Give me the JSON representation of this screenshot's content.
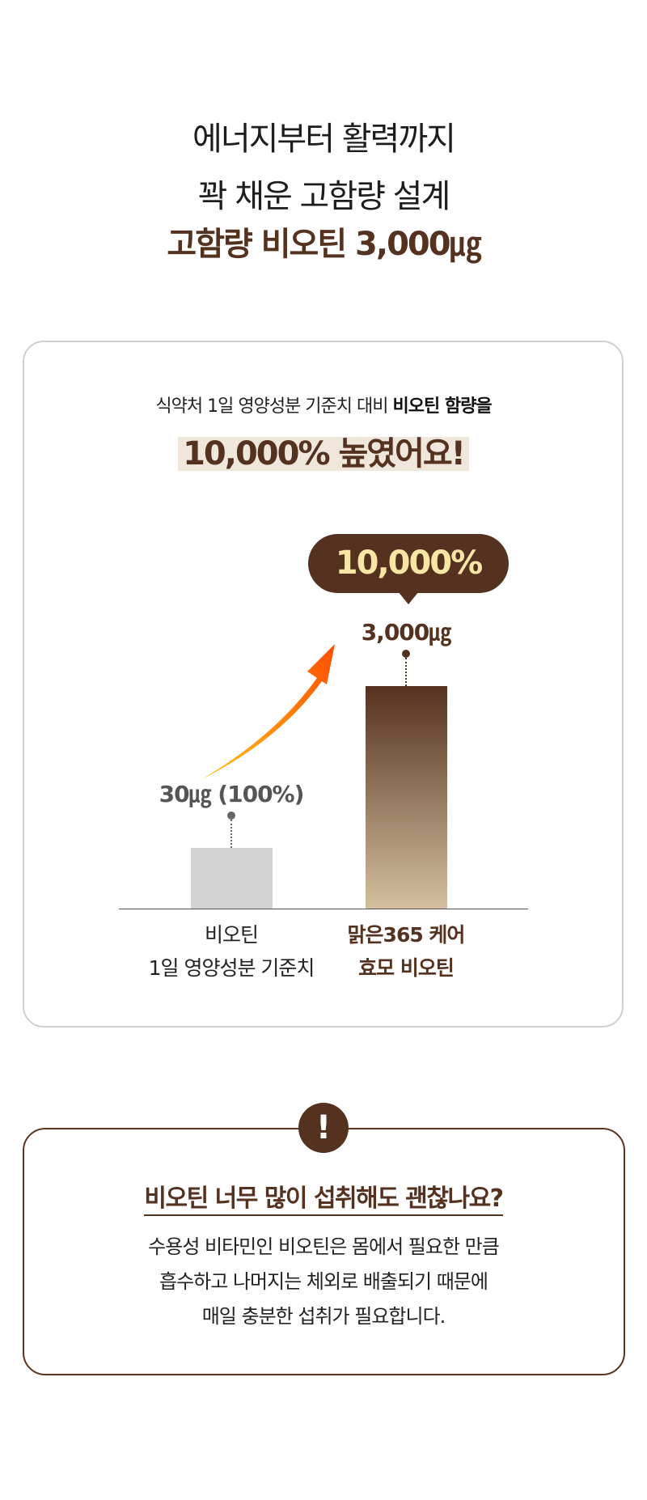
{
  "headline": {
    "line1": "에너지부터 활력까지",
    "line2": "꽉 채운 고함량 설계",
    "line3": "고함량 비오틴 3,000㎍"
  },
  "comparison_card": {
    "subtitle_regular": "식약처 1일 영양성분 기준치 대비 ",
    "subtitle_bold": "비오틴 함량을",
    "highlight": "10,000% 높였어요!",
    "badge": "10,000%",
    "colors": {
      "brand_brown": "#55321f",
      "badge_text": "#f9e6a5",
      "highlight_bg": "#efe6dc",
      "arrow_start": "#ffc21a",
      "arrow_end": "#ff4d00"
    }
  },
  "chart_data": {
    "type": "bar",
    "categories": [
      "비오틴 1일 영양성분 기준치",
      "맑은365 케어 효모 비오틴"
    ],
    "category_lines": [
      [
        "비오틴",
        "1일 영양성분 기준치"
      ],
      [
        "맑은365 케어",
        "효모 비오틴"
      ]
    ],
    "values": [
      30,
      3000
    ],
    "unit": "㎍",
    "data_labels": [
      "30㎍ (100%)",
      "3,000㎍"
    ],
    "bar_colors": [
      "#d3d3d3",
      "gradient #55321f→#d4bfa0"
    ],
    "annotation": "10,000%"
  },
  "notice": {
    "icon": "exclamation-icon",
    "question": "비오틴 너무 많이 섭취해도 괜찮나요?",
    "lines": [
      "수용성 비타민인 비오틴은 몸에서 필요한 만큼",
      "흡수하고 나머지는 체외로 배출되기 때문에",
      "매일 충분한 섭취가 필요합니다."
    ]
  }
}
